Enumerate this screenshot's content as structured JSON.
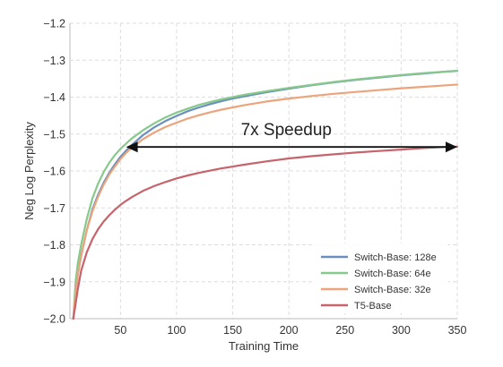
{
  "chart_data": {
    "type": "line",
    "title": "",
    "xlabel": "Training Time",
    "ylabel": "Neg Log Perplexity",
    "xlim": [
      5,
      350
    ],
    "ylim": [
      -2.0,
      -1.2
    ],
    "xticks": [
      50,
      100,
      150,
      200,
      250,
      300,
      350
    ],
    "yticks": [
      -2.0,
      -1.9,
      -1.8,
      -1.7,
      -1.6,
      -1.5,
      -1.4,
      -1.3,
      -1.2
    ],
    "ytick_labels": [
      "−2.0",
      "−1.9",
      "−1.8",
      "−1.7",
      "−1.6",
      "−1.5",
      "−1.4",
      "−1.3",
      "−1.2"
    ],
    "grid": true,
    "legend_position": "lower-right",
    "series": [
      {
        "name": "Switch-Base: 128e",
        "color": "#6a8fbd",
        "x": [
          8,
          10,
          12,
          15,
          20,
          25,
          30,
          35,
          40,
          45,
          50,
          55,
          60,
          70,
          80,
          90,
          100,
          110,
          120,
          130,
          140,
          150,
          160,
          180,
          200,
          220,
          240,
          260,
          280,
          300,
          320,
          340,
          350
        ],
        "y": [
          -2.0,
          -1.93,
          -1.88,
          -1.83,
          -1.76,
          -1.705,
          -1.665,
          -1.632,
          -1.605,
          -1.582,
          -1.562,
          -1.545,
          -1.53,
          -1.503,
          -1.482,
          -1.465,
          -1.451,
          -1.438,
          -1.428,
          -1.419,
          -1.411,
          -1.404,
          -1.398,
          -1.387,
          -1.377,
          -1.368,
          -1.36,
          -1.353,
          -1.347,
          -1.341,
          -1.336,
          -1.331,
          -1.329
        ]
      },
      {
        "name": "Switch-Base: 64e",
        "color": "#86c98a",
        "x": [
          8,
          10,
          12,
          15,
          20,
          25,
          30,
          35,
          40,
          45,
          50,
          55,
          60,
          70,
          80,
          90,
          100,
          110,
          120,
          130,
          140,
          150,
          160,
          180,
          200,
          220,
          240,
          260,
          280,
          300,
          320,
          340,
          350
        ],
        "y": [
          -2.0,
          -1.9,
          -1.85,
          -1.8,
          -1.73,
          -1.675,
          -1.635,
          -1.603,
          -1.578,
          -1.557,
          -1.54,
          -1.526,
          -1.512,
          -1.49,
          -1.471,
          -1.455,
          -1.442,
          -1.431,
          -1.421,
          -1.413,
          -1.406,
          -1.4,
          -1.394,
          -1.384,
          -1.375,
          -1.367,
          -1.359,
          -1.352,
          -1.346,
          -1.34,
          -1.335,
          -1.331,
          -1.329
        ]
      },
      {
        "name": "Switch-Base: 32e",
        "color": "#eba47c",
        "x": [
          8,
          10,
          12,
          15,
          20,
          25,
          30,
          35,
          40,
          45,
          50,
          55,
          60,
          70,
          80,
          90,
          100,
          110,
          120,
          130,
          140,
          150,
          160,
          180,
          200,
          220,
          240,
          260,
          280,
          300,
          320,
          340,
          350
        ],
        "y": [
          -2.0,
          -1.93,
          -1.88,
          -1.83,
          -1.76,
          -1.71,
          -1.67,
          -1.637,
          -1.61,
          -1.588,
          -1.568,
          -1.551,
          -1.537,
          -1.514,
          -1.496,
          -1.481,
          -1.469,
          -1.458,
          -1.449,
          -1.441,
          -1.434,
          -1.428,
          -1.422,
          -1.412,
          -1.404,
          -1.397,
          -1.391,
          -1.386,
          -1.381,
          -1.376,
          -1.372,
          -1.368,
          -1.366
        ]
      },
      {
        "name": "T5-Base",
        "color": "#c7636b",
        "x": [
          8,
          10,
          12,
          15,
          20,
          25,
          30,
          35,
          40,
          45,
          50,
          55,
          60,
          70,
          80,
          90,
          100,
          110,
          120,
          130,
          140,
          150,
          160,
          180,
          200,
          220,
          240,
          260,
          280,
          300,
          320,
          340,
          350
        ],
        "y": [
          -2.0,
          -1.96,
          -1.92,
          -1.87,
          -1.82,
          -1.785,
          -1.758,
          -1.737,
          -1.72,
          -1.705,
          -1.692,
          -1.681,
          -1.671,
          -1.654,
          -1.641,
          -1.63,
          -1.62,
          -1.612,
          -1.605,
          -1.599,
          -1.593,
          -1.588,
          -1.583,
          -1.574,
          -1.566,
          -1.56,
          -1.555,
          -1.55,
          -1.546,
          -1.542,
          -1.538,
          -1.535,
          -1.534
        ]
      }
    ],
    "annotation": {
      "text": "7x Speedup",
      "from": [
        55,
        -1.535
      ],
      "to": [
        350,
        -1.535
      ]
    }
  }
}
